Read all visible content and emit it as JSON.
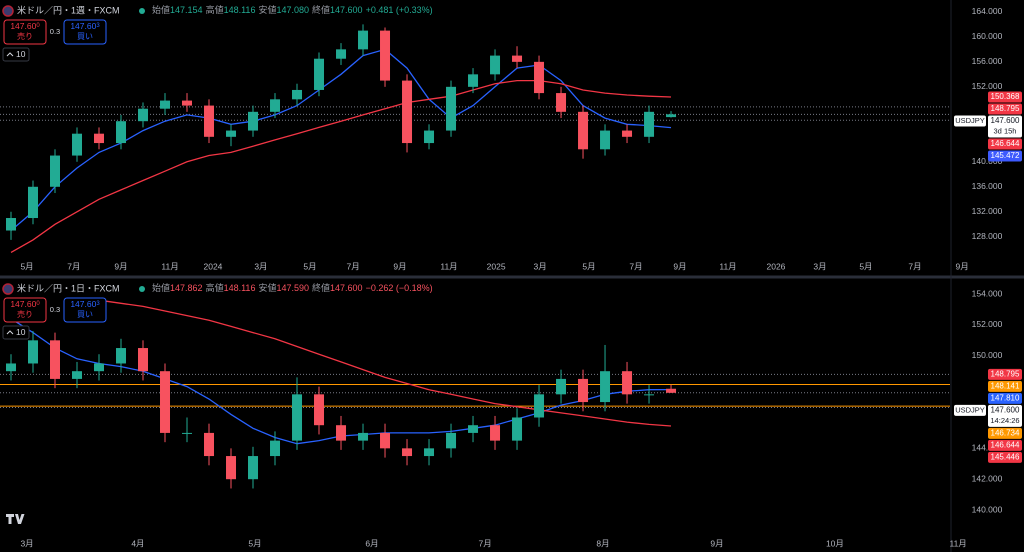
{
  "chart_data": [
    {
      "type": "candlestick",
      "title": "米ドル／円・1週・FXCM",
      "ohlc": [
        {
          "label": "始値",
          "value": "147.154"
        },
        {
          "label": "高値",
          "value": "148.116"
        },
        {
          "label": "安値",
          "value": "147.080"
        },
        {
          "label": "終値",
          "value": "147.600"
        }
      ],
      "change": "+0.481 (+0.33%)",
      "change_color": "#22ab94",
      "sell": {
        "price": "147.60",
        "sup": "0",
        "label": "売り"
      },
      "spread": "0.3",
      "buy": {
        "price": "147.60",
        "sup": "3",
        "label": "買い"
      },
      "indicators": "10",
      "up_color": "#22ab94",
      "down_color": "#f7525f",
      "xlim": [
        -0.5,
        42.68
      ],
      "xticks": [
        {
          "value": 0.73,
          "label": "5月"
        },
        {
          "value": 2.86,
          "label": "7月"
        },
        {
          "value": 5.0,
          "label": "9月"
        },
        {
          "value": 7.23,
          "label": "11月"
        },
        {
          "value": 9.18,
          "label": "2024"
        },
        {
          "value": 11.36,
          "label": "3月"
        },
        {
          "value": 13.59,
          "label": "5月"
        },
        {
          "value": 15.55,
          "label": "7月"
        },
        {
          "value": 17.68,
          "label": "9月"
        },
        {
          "value": 19.91,
          "label": "11月"
        },
        {
          "value": 22.05,
          "label": "2025"
        },
        {
          "value": 24.05,
          "label": "3月"
        },
        {
          "value": 26.27,
          "label": "5月"
        },
        {
          "value": 28.41,
          "label": "7月"
        },
        {
          "value": 30.41,
          "label": "9月"
        },
        {
          "value": 32.59,
          "label": "11月"
        },
        {
          "value": 34.77,
          "label": "2026"
        },
        {
          "value": 36.77,
          "label": "3月"
        },
        {
          "value": 38.86,
          "label": "5月"
        },
        {
          "value": 41.09,
          "label": "7月"
        },
        {
          "value": 43.23,
          "label": "9月"
        }
      ],
      "ylim": [
        124.6,
        165.9
      ],
      "yticks": [
        {
          "value": 128,
          "label": "128.000"
        },
        {
          "value": 132,
          "label": "132.000"
        },
        {
          "value": 136,
          "label": "136.000"
        },
        {
          "value": 140,
          "label": "140.000"
        },
        {
          "value": 152,
          "label": "152.000"
        },
        {
          "value": 156,
          "label": "156.000"
        },
        {
          "value": 160,
          "label": "160.000"
        },
        {
          "value": 164,
          "label": "164.000"
        }
      ],
      "grid": false,
      "open": [
        129,
        131,
        136,
        141,
        144.5,
        143,
        146.5,
        148.5,
        149.8,
        149,
        144,
        145,
        148,
        150,
        151.5,
        156.5,
        158,
        161,
        153,
        143,
        145,
        152,
        154,
        157,
        156,
        151,
        148,
        142,
        145,
        144,
        147.154
      ],
      "high": [
        132,
        137,
        142,
        145.5,
        145.5,
        147.5,
        149.5,
        151,
        151,
        150,
        146,
        149,
        151,
        152.5,
        157.5,
        159,
        162,
        161.5,
        154,
        146,
        153,
        155,
        158,
        158.5,
        157,
        152,
        149,
        146,
        146,
        149,
        148.116
      ],
      "low": [
        127.5,
        130,
        135,
        140,
        142,
        142,
        145.5,
        147.5,
        148,
        143,
        142.5,
        144,
        147,
        149,
        150.5,
        155.5,
        157,
        152,
        141.5,
        142,
        144,
        151,
        153,
        155,
        150,
        147,
        140.5,
        141,
        143,
        143,
        147.08
      ],
      "close": [
        131,
        136,
        141,
        144.5,
        143,
        146.5,
        148.5,
        149.8,
        149,
        144,
        145,
        148,
        150,
        151.5,
        156.5,
        158,
        161,
        153,
        143,
        145,
        152,
        154,
        157,
        156,
        151,
        148,
        142,
        145,
        144,
        148,
        147.6
      ],
      "lines": [
        {
          "color": "#2962ff",
          "values": [
            129,
            132,
            136,
            139,
            141.5,
            143,
            145,
            146.5,
            147.5,
            147,
            146,
            146.5,
            147.5,
            149,
            151.5,
            154,
            157,
            158,
            155,
            150,
            147,
            149,
            152,
            155,
            155.5,
            153,
            149,
            147,
            146,
            145.8,
            145.472
          ]
        },
        {
          "color": "#f23645",
          "values": [
            125.5,
            127.5,
            130,
            132,
            134,
            135.5,
            137,
            138.5,
            140,
            141,
            141.5,
            142.5,
            143.5,
            144.5,
            145.5,
            146.5,
            147.5,
            148.5,
            149.5,
            150,
            150.5,
            151.5,
            152.5,
            153,
            153,
            152.5,
            151.5,
            151,
            150.7,
            150.5,
            150.368
          ]
        }
      ],
      "hlines": [
        {
          "value": 148.795,
          "color": "#787b86",
          "dash": "1 2"
        },
        {
          "value": 147.6,
          "color": "#787b86",
          "dash": "1 2"
        },
        {
          "value": 146.644,
          "color": "#787b86",
          "dash": "1 2"
        }
      ],
      "price_labels": [
        {
          "value": 150.368,
          "color": "#f23645"
        },
        {
          "value": 148.795,
          "color": "#f23645"
        },
        {
          "value": 147.6,
          "label": "147.600",
          "color": "#ffffff",
          "symbol": "USDJPY",
          "countdown": "3d 15h"
        },
        {
          "value": 146.644,
          "color": "#f23645"
        },
        {
          "value": 145.472,
          "color": "#3d5afe"
        }
      ]
    },
    {
      "type": "candlestick",
      "title": "米ドル／円・1日・FXCM",
      "ohlc": [
        {
          "label": "始値",
          "value": "147.862"
        },
        {
          "label": "高値",
          "value": "148.116"
        },
        {
          "label": "安値",
          "value": "147.590"
        },
        {
          "label": "終値",
          "value": "147.600"
        }
      ],
      "change": "−0.262 (−0.18%)",
      "change_color": "#f7525f",
      "sell": {
        "price": "147.60",
        "sup": "0",
        "label": "売り"
      },
      "spread": "0.3",
      "buy": {
        "price": "147.60",
        "sup": "3",
        "label": "買い"
      },
      "indicators": "10",
      "up_color": "#22ab94",
      "down_color": "#f7525f",
      "xlim": [
        -0.5,
        42.68
      ],
      "xticks": [
        {
          "value": 0.73,
          "label": "3月"
        },
        {
          "value": 5.77,
          "label": "4月"
        },
        {
          "value": 11.09,
          "label": "5月"
        },
        {
          "value": 16.41,
          "label": "6月"
        },
        {
          "value": 21.55,
          "label": "7月"
        },
        {
          "value": 26.91,
          "label": "8月"
        },
        {
          "value": 32.09,
          "label": "9月"
        },
        {
          "value": 37.45,
          "label": "10月"
        },
        {
          "value": 43.05,
          "label": "11月"
        }
      ],
      "ylim": [
        138.06,
        154.91
      ],
      "yticks": [
        {
          "value": 140,
          "label": "140.000"
        },
        {
          "value": 142,
          "label": "142.000"
        },
        {
          "value": 144,
          "label": "144.000"
        },
        {
          "value": 150,
          "label": "150.000"
        },
        {
          "value": 152,
          "label": "152.000"
        },
        {
          "value": 154,
          "label": "154.000"
        }
      ],
      "grid": false,
      "open": [
        149,
        149.5,
        151,
        148.5,
        149,
        149.5,
        150.5,
        149,
        145,
        145,
        143.5,
        142,
        143.5,
        144.5,
        147.5,
        145.5,
        144.5,
        145,
        144,
        143.5,
        144,
        145,
        145.5,
        144.5,
        146,
        147.5,
        148.5,
        147,
        149,
        147.5,
        147.862
      ],
      "high": [
        150.1,
        151.6,
        151.5,
        149.6,
        150.1,
        151.1,
        151,
        149.5,
        146,
        145.6,
        144,
        144.1,
        145.1,
        148.6,
        148,
        146.1,
        145.6,
        145.6,
        144.6,
        144.6,
        145.6,
        146.1,
        146.1,
        146.6,
        148.1,
        149.1,
        149.1,
        150.7,
        149.6,
        148.1,
        148.116
      ],
      "low": [
        148.4,
        148.9,
        147.9,
        147.9,
        148.4,
        148.9,
        148.4,
        144.4,
        144.4,
        142.9,
        141.4,
        141.4,
        142.9,
        143.9,
        144.9,
        143.9,
        143.9,
        143.4,
        142.9,
        142.9,
        143.4,
        144.4,
        143.9,
        143.9,
        145.4,
        146.9,
        146.4,
        146.4,
        146.9,
        146.9,
        147.59
      ],
      "close": [
        149.5,
        151,
        148.5,
        149,
        149.5,
        150.5,
        149,
        145,
        145,
        143.5,
        142,
        143.5,
        144.5,
        147.5,
        145.5,
        144.5,
        145,
        144,
        143.5,
        144,
        145,
        145.5,
        144.5,
        146,
        147.5,
        148.5,
        147,
        149,
        147.5,
        147.5,
        147.6
      ],
      "lines": [
        {
          "color": "#2962ff",
          "values": [
            152.4,
            151.5,
            150.5,
            149.8,
            149.5,
            149.3,
            149,
            148.5,
            148,
            147.2,
            146.2,
            145.3,
            144.7,
            144.3,
            144.5,
            144.8,
            144.9,
            145,
            145,
            145,
            145.1,
            145.3,
            145.5,
            145.9,
            146.3,
            146.8,
            147.1,
            147.5,
            147.7,
            147.8,
            147.81
          ]
        },
        {
          "color": "#f23645",
          "values": [
            null,
            null,
            null,
            null,
            153.6,
            153.4,
            153.2,
            152.9,
            152.6,
            152.3,
            151.9,
            151.5,
            151.1,
            150.6,
            150.1,
            149.6,
            149.1,
            148.6,
            148.2,
            147.8,
            147.5,
            147.2,
            146.9,
            146.7,
            146.5,
            146.3,
            146.1,
            145.9,
            145.7,
            145.55,
            145.446
          ]
        }
      ],
      "hlines": [
        {
          "value": 148.795,
          "color": "#787b86",
          "dash": "1 2"
        },
        {
          "value": 148.141,
          "color": "#ff9800",
          "dash": ""
        },
        {
          "value": 147.6,
          "color": "#787b86",
          "dash": "1 2"
        },
        {
          "value": 146.734,
          "color": "#ff9800",
          "dash": ""
        },
        {
          "value": 146.644,
          "color": "#787b86",
          "dash": "1 2"
        }
      ],
      "price_labels": [
        {
          "value": 148.795,
          "color": "#f23645"
        },
        {
          "value": 148.141,
          "color": "#ff9800"
        },
        {
          "value": 147.81,
          "label": "147.810",
          "color": "#2962ff"
        },
        {
          "value": 147.6,
          "label": "147.600",
          "color": "#ffffff",
          "symbol": "USDJPY",
          "countdown": "14:24:26"
        },
        {
          "value": 146.734,
          "color": "#ff9800"
        },
        {
          "value": 146.644,
          "color": "#f23645"
        },
        {
          "value": 145.446,
          "color": "#f23645"
        }
      ]
    }
  ]
}
